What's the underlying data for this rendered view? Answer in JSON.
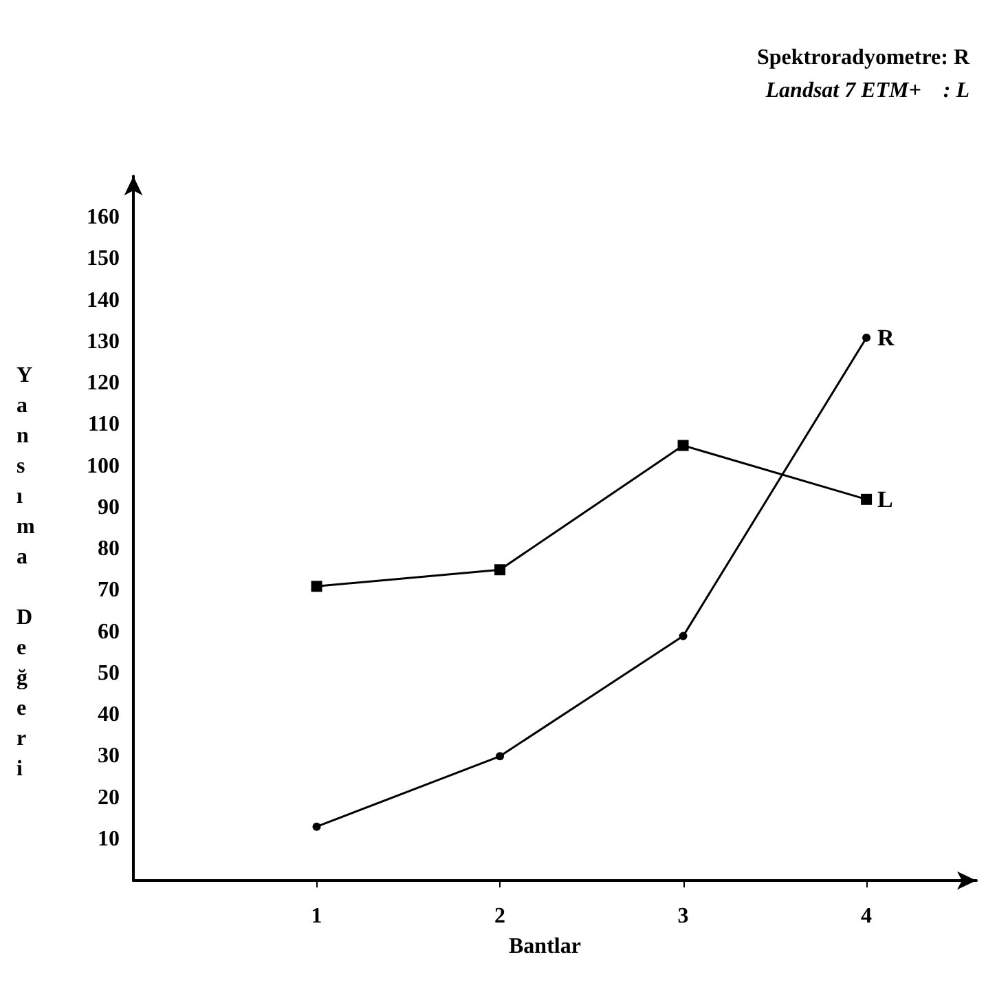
{
  "chart_data": {
    "type": "line",
    "xlabel": "Bantlar",
    "ylabel": "Yansıma Değeri",
    "x": [
      1,
      2,
      3,
      4
    ],
    "xlim": [
      0,
      4.6
    ],
    "xticks": [
      1,
      2,
      3,
      4
    ],
    "ylim": [
      0,
      170
    ],
    "yticks": [
      10,
      20,
      30,
      40,
      50,
      60,
      70,
      80,
      90,
      100,
      110,
      120,
      130,
      140,
      150,
      160
    ],
    "series": [
      {
        "name": "L",
        "color": "#000000",
        "marker": "square",
        "values": [
          71,
          75,
          105,
          92
        ]
      },
      {
        "name": "R",
        "color": "#000000",
        "marker": "circle",
        "values": [
          13,
          30,
          59,
          131
        ]
      }
    ],
    "annotations": [
      "Spektroradyometre: R",
      "Landsat 7 ETM+    : L"
    ],
    "grid": false,
    "legend": false,
    "line_style": "solid"
  }
}
